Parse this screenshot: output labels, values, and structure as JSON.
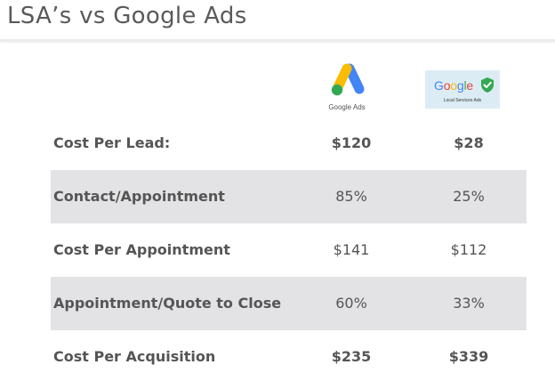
{
  "title": "LSA’s vs Google Ads",
  "logos": {
    "google_ads": {
      "icon": "google-ads-logo-icon",
      "label": "Google Ads"
    },
    "lsa": {
      "icon": "google-lsa-logo-icon",
      "word_letters": [
        "G",
        "o",
        "o",
        "g",
        "l",
        "e"
      ],
      "subtitle": "Local Services Ads",
      "check_icon": "shield-check-icon"
    }
  },
  "colors": {
    "google_blue": "#4285F4",
    "google_red": "#EA4335",
    "google_yellow": "#FBBC05",
    "google_green": "#34A853",
    "row_shade": "#e3e3e6",
    "text": "#555555"
  },
  "table": {
    "rows": [
      {
        "label": "Cost Per Lead:",
        "google_ads": "$120",
        "lsa": "$28",
        "shaded": false,
        "bold_values": true
      },
      {
        "label": "Contact/Appointment",
        "google_ads": "85%",
        "lsa": "25%",
        "shaded": true,
        "bold_values": false
      },
      {
        "label": "Cost Per Appointment",
        "google_ads": "$141",
        "lsa": "$112",
        "shaded": false,
        "bold_values": false
      },
      {
        "label": "Appointment/Quote to Close",
        "google_ads": "60%",
        "lsa": "33%",
        "shaded": true,
        "bold_values": false
      },
      {
        "label": "Cost Per Acquisition",
        "google_ads": "$235",
        "lsa": "$339",
        "shaded": false,
        "bold_values": true
      }
    ]
  }
}
